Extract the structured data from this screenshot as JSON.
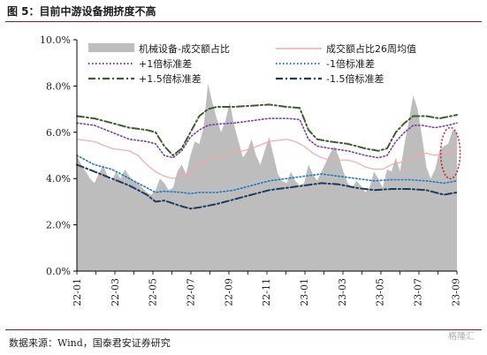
{
  "header": {
    "title": "图 5：目前中游设备拥挤度不高"
  },
  "footer": {
    "source": "数据来源：Wind，国泰君安证券研究",
    "watermark": "格隆汇"
  },
  "colors": {
    "area": "#bdbdbd",
    "mean": "#f4a7a3",
    "plus1": "#7b3fa8",
    "minus1": "#1e78c8",
    "plus15": "#3a5f2a",
    "minus15": "#1f3b5c",
    "ellipse": "#d62020"
  },
  "chart_data": {
    "type": "area",
    "title": "",
    "xlabel": "",
    "ylabel": "",
    "ylim": [
      0,
      10
    ],
    "yticks": [
      0,
      2,
      4,
      6,
      8,
      10
    ],
    "ytick_labels": [
      "0.0%",
      "2.0%",
      "4.0%",
      "6.0%",
      "8.0%",
      "10.0%"
    ],
    "x_labels": [
      "22-01",
      "22-03",
      "22-05",
      "22-07",
      "22-09",
      "22-11",
      "23-01",
      "23-03",
      "23-05",
      "23-07",
      "23-09"
    ],
    "x_labels_pos": [
      0,
      8.7,
      17.3,
      26,
      34.7,
      43.3,
      52,
      60.7,
      69.3,
      78,
      86.7
    ],
    "xlim": [
      0,
      87
    ],
    "legend": {
      "placement": "top",
      "entries": [
        "机械设备-成交额占比",
        "成交额占比26周均值",
        "+1倍标准差",
        "-1倍标准差",
        "+1.5倍标准差",
        "-1.5倍标准差"
      ]
    },
    "series": [
      {
        "name": "机械设备-成交额占比",
        "type": "area",
        "points": [
          [
            0,
            5.0
          ],
          [
            1,
            4.6
          ],
          [
            2,
            4.3
          ],
          [
            3,
            4.0
          ],
          [
            4,
            3.8
          ],
          [
            5,
            4.2
          ],
          [
            6,
            4.6
          ],
          [
            7,
            4.1
          ],
          [
            8,
            3.9
          ],
          [
            9,
            4.3
          ],
          [
            10,
            4.0
          ],
          [
            11,
            4.4
          ],
          [
            12,
            4.1
          ],
          [
            13,
            3.9
          ],
          [
            14,
            3.8
          ],
          [
            15,
            3.6
          ],
          [
            16,
            3.4
          ],
          [
            17,
            3.3
          ],
          [
            18,
            3.5
          ],
          [
            19,
            4.0
          ],
          [
            20,
            3.8
          ],
          [
            21,
            3.5
          ],
          [
            22,
            3.6
          ],
          [
            23,
            4.3
          ],
          [
            24,
            4.6
          ],
          [
            25,
            4.2
          ],
          [
            26,
            5.0
          ],
          [
            27,
            5.6
          ],
          [
            28,
            5.5
          ],
          [
            29,
            6.2
          ],
          [
            30,
            8.1
          ],
          [
            31,
            7.3
          ],
          [
            32,
            6.6
          ],
          [
            33,
            6.0
          ],
          [
            34,
            6.5
          ],
          [
            35,
            7.3
          ],
          [
            36,
            6.3
          ],
          [
            37,
            5.6
          ],
          [
            38,
            4.9
          ],
          [
            39,
            5.2
          ],
          [
            40,
            5.7
          ],
          [
            41,
            5.0
          ],
          [
            42,
            4.6
          ],
          [
            43,
            5.2
          ],
          [
            44,
            5.8
          ],
          [
            45,
            5.0
          ],
          [
            46,
            4.2
          ],
          [
            47,
            3.9
          ],
          [
            48,
            3.8
          ],
          [
            49,
            4.3
          ],
          [
            50,
            3.9
          ],
          [
            51,
            3.7
          ],
          [
            52,
            3.8
          ],
          [
            53,
            4.6
          ],
          [
            54,
            4.2
          ],
          [
            55,
            3.9
          ],
          [
            56,
            4.3
          ],
          [
            57,
            4.7
          ],
          [
            58,
            5.1
          ],
          [
            59,
            5.4
          ],
          [
            60,
            4.9
          ],
          [
            61,
            4.3
          ],
          [
            62,
            3.8
          ],
          [
            63,
            3.6
          ],
          [
            64,
            3.9
          ],
          [
            65,
            3.7
          ],
          [
            66,
            3.4
          ],
          [
            67,
            3.6
          ],
          [
            68,
            4.3
          ],
          [
            69,
            4.0
          ],
          [
            70,
            3.6
          ],
          [
            71,
            4.4
          ],
          [
            72,
            4.3
          ],
          [
            73,
            4.9
          ],
          [
            74,
            4.3
          ],
          [
            75,
            5.5
          ],
          [
            76,
            6.5
          ],
          [
            77,
            7.6
          ],
          [
            78,
            7.0
          ],
          [
            79,
            5.8
          ],
          [
            80,
            4.5
          ],
          [
            81,
            4.0
          ],
          [
            82,
            4.4
          ],
          [
            83,
            5.2
          ],
          [
            84,
            5.4
          ],
          [
            85,
            5.5
          ],
          [
            86,
            6.1
          ],
          [
            87,
            6.0
          ]
        ]
      },
      {
        "name": "成交额占比26周均值",
        "type": "line",
        "points": [
          [
            0,
            5.7
          ],
          [
            4,
            5.6
          ],
          [
            8,
            5.3
          ],
          [
            12,
            5.2
          ],
          [
            14,
            5.0
          ],
          [
            16,
            4.6
          ],
          [
            18,
            4.3
          ],
          [
            20,
            4.1
          ],
          [
            22,
            4.0
          ],
          [
            24,
            4.1
          ],
          [
            26,
            4.2
          ],
          [
            28,
            4.6
          ],
          [
            30,
            4.8
          ],
          [
            32,
            5.0
          ],
          [
            34,
            5.0
          ],
          [
            36,
            5.1
          ],
          [
            40,
            5.3
          ],
          [
            44,
            5.6
          ],
          [
            48,
            5.7
          ],
          [
            50,
            5.6
          ],
          [
            52,
            5.4
          ],
          [
            54,
            5.1
          ],
          [
            56,
            4.9
          ],
          [
            58,
            4.8
          ],
          [
            60,
            4.8
          ],
          [
            62,
            4.8
          ],
          [
            64,
            4.7
          ],
          [
            66,
            4.5
          ],
          [
            68,
            4.4
          ],
          [
            70,
            4.4
          ],
          [
            72,
            4.6
          ],
          [
            74,
            4.7
          ],
          [
            76,
            4.8
          ],
          [
            78,
            5.0
          ],
          [
            80,
            5.1
          ],
          [
            82,
            5.0
          ],
          [
            84,
            5.1
          ],
          [
            86,
            5.2
          ],
          [
            87,
            5.3
          ]
        ]
      },
      {
        "name": "+1倍标准差",
        "type": "line",
        "points": [
          [
            0,
            6.4
          ],
          [
            4,
            6.3
          ],
          [
            8,
            6.0
          ],
          [
            12,
            5.7
          ],
          [
            16,
            5.6
          ],
          [
            18,
            5.5
          ],
          [
            20,
            5.0
          ],
          [
            22,
            4.9
          ],
          [
            24,
            5.2
          ],
          [
            26,
            5.8
          ],
          [
            28,
            6.1
          ],
          [
            30,
            6.3
          ],
          [
            32,
            6.35
          ],
          [
            36,
            6.4
          ],
          [
            40,
            6.5
          ],
          [
            44,
            6.6
          ],
          [
            48,
            6.6
          ],
          [
            51,
            6.55
          ],
          [
            53,
            5.7
          ],
          [
            55,
            5.4
          ],
          [
            58,
            5.3
          ],
          [
            62,
            5.2
          ],
          [
            66,
            5.0
          ],
          [
            69,
            4.9
          ],
          [
            71,
            5.0
          ],
          [
            73,
            5.6
          ],
          [
            75,
            6.0
          ],
          [
            77,
            6.3
          ],
          [
            79,
            6.3
          ],
          [
            82,
            6.2
          ],
          [
            85,
            6.3
          ],
          [
            87,
            6.4
          ]
        ]
      },
      {
        "name": "-1倍标准差",
        "type": "line",
        "points": [
          [
            0,
            5.0
          ],
          [
            4,
            4.6
          ],
          [
            8,
            4.4
          ],
          [
            12,
            4.0
          ],
          [
            16,
            3.6
          ],
          [
            18,
            3.4
          ],
          [
            20,
            3.45
          ],
          [
            24,
            3.4
          ],
          [
            26,
            3.35
          ],
          [
            28,
            3.4
          ],
          [
            32,
            3.4
          ],
          [
            36,
            3.5
          ],
          [
            40,
            3.7
          ],
          [
            44,
            3.9
          ],
          [
            48,
            4.0
          ],
          [
            52,
            4.1
          ],
          [
            56,
            4.2
          ],
          [
            60,
            4.1
          ],
          [
            64,
            4.0
          ],
          [
            68,
            3.9
          ],
          [
            72,
            3.95
          ],
          [
            76,
            3.95
          ],
          [
            80,
            3.9
          ],
          [
            84,
            3.8
          ],
          [
            87,
            3.9
          ]
        ]
      },
      {
        "name": "+1.5倍标准差",
        "type": "line",
        "points": [
          [
            0,
            6.7
          ],
          [
            4,
            6.6
          ],
          [
            8,
            6.4
          ],
          [
            12,
            6.2
          ],
          [
            16,
            6.1
          ],
          [
            18,
            6.0
          ],
          [
            20,
            5.4
          ],
          [
            22,
            5.0
          ],
          [
            24,
            5.3
          ],
          [
            26,
            6.0
          ],
          [
            28,
            6.7
          ],
          [
            30,
            7.0
          ],
          [
            32,
            7.1
          ],
          [
            36,
            7.1
          ],
          [
            40,
            7.15
          ],
          [
            44,
            7.2
          ],
          [
            48,
            7.1
          ],
          [
            51,
            7.05
          ],
          [
            53,
            6.1
          ],
          [
            55,
            5.7
          ],
          [
            58,
            5.6
          ],
          [
            62,
            5.5
          ],
          [
            66,
            5.3
          ],
          [
            69,
            5.2
          ],
          [
            71,
            5.3
          ],
          [
            73,
            6.0
          ],
          [
            75,
            6.4
          ],
          [
            77,
            6.7
          ],
          [
            80,
            6.7
          ],
          [
            83,
            6.6
          ],
          [
            87,
            6.75
          ]
        ]
      },
      {
        "name": "-1.5倍标准差",
        "type": "line",
        "points": [
          [
            0,
            4.6
          ],
          [
            4,
            4.3
          ],
          [
            8,
            4.0
          ],
          [
            12,
            3.7
          ],
          [
            16,
            3.3
          ],
          [
            18,
            3.0
          ],
          [
            20,
            3.05
          ],
          [
            24,
            2.8
          ],
          [
            26,
            2.7
          ],
          [
            28,
            2.75
          ],
          [
            32,
            2.9
          ],
          [
            36,
            3.1
          ],
          [
            40,
            3.3
          ],
          [
            44,
            3.5
          ],
          [
            48,
            3.6
          ],
          [
            52,
            3.7
          ],
          [
            56,
            3.8
          ],
          [
            60,
            3.75
          ],
          [
            64,
            3.6
          ],
          [
            68,
            3.5
          ],
          [
            72,
            3.55
          ],
          [
            76,
            3.55
          ],
          [
            80,
            3.5
          ],
          [
            84,
            3.3
          ],
          [
            87,
            3.4
          ]
        ]
      }
    ]
  }
}
